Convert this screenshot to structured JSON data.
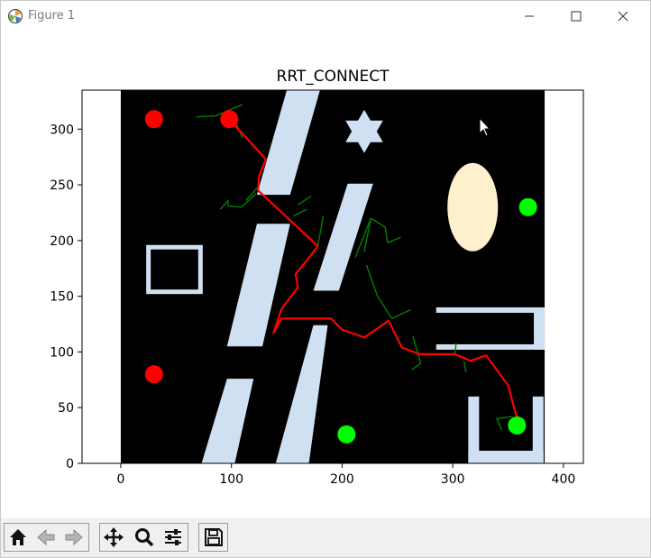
{
  "window": {
    "title": "Figure 1"
  },
  "chart_data": {
    "type": "scatter",
    "title": "RRT_CONNECT",
    "xlabel": "",
    "ylabel": "",
    "xlim": [
      -35,
      418
    ],
    "ylim": [
      0,
      335
    ],
    "xticks": [
      0,
      100,
      200,
      300,
      400
    ],
    "yticks": [
      0,
      50,
      100,
      150,
      200,
      250,
      300
    ],
    "workspace": {
      "x": [
        0,
        383
      ],
      "y": [
        0,
        335
      ],
      "color": "#000000"
    },
    "obstacles": [
      {
        "shape": "polygon",
        "points": [
          [
            150,
            335
          ],
          [
            180,
            335
          ],
          [
            153,
            241
          ],
          [
            123,
            241
          ]
        ],
        "color": "#cfe0f2"
      },
      {
        "shape": "polygon",
        "points": [
          [
            205,
            251
          ],
          [
            228,
            251
          ],
          [
            197,
            155
          ],
          [
            174,
            155
          ]
        ],
        "color": "#cfe0f2"
      },
      {
        "shape": "polygon",
        "points": [
          [
            123,
            215
          ],
          [
            153,
            215
          ],
          [
            128,
            105
          ],
          [
            96,
            105
          ]
        ],
        "color": "#cfe0f2"
      },
      {
        "shape": "polygon",
        "points": [
          [
            187,
            124
          ],
          [
            174,
            124
          ],
          [
            140,
            0
          ],
          [
            170,
            0
          ]
        ],
        "color": "#cfe0f2"
      },
      {
        "shape": "polygon",
        "points": [
          [
            96,
            76
          ],
          [
            120,
            76
          ],
          [
            103,
            0
          ],
          [
            73,
            0
          ]
        ],
        "color": "#cfe0f2"
      },
      {
        "shape": "hexagram",
        "center": [
          220,
          298
        ],
        "radius": 24,
        "color": "#cfe0f2"
      },
      {
        "shape": "square-ring",
        "x": [
          25,
          72
        ],
        "y": [
          194,
          154
        ],
        "thickness": 5,
        "color": "#cfe0f2"
      },
      {
        "shape": "ellipse",
        "center": [
          318,
          230
        ],
        "rx": 28,
        "ry": 49,
        "color": "#fff0cd"
      },
      {
        "shape": "u-ring-horizontal",
        "x": [
          285,
          383
        ],
        "y": [
          140,
          102
        ],
        "thickness": 6,
        "color": "#cfe0f2"
      },
      {
        "shape": "u-ring-vertical",
        "x": [
          314,
          382
        ],
        "y": [
          60,
          0
        ],
        "thickness": 10,
        "color": "#cfe0f2"
      }
    ],
    "red_points": [
      [
        30,
        309
      ],
      [
        98,
        309
      ],
      [
        30,
        80
      ]
    ],
    "green_points": [
      [
        368,
        230
      ],
      [
        204,
        26
      ],
      [
        358,
        34
      ]
    ],
    "path": {
      "color": "#ff0000",
      "points": [
        [
          98,
          309
        ],
        [
          120,
          285
        ],
        [
          131,
          273
        ],
        [
          125,
          258
        ],
        [
          124,
          245
        ],
        [
          150,
          221
        ],
        [
          178,
          195
        ],
        [
          168,
          182
        ],
        [
          158,
          170
        ],
        [
          160,
          158
        ],
        [
          145,
          138
        ],
        [
          141,
          126
        ],
        [
          138,
          117
        ],
        [
          145,
          130
        ],
        [
          190,
          130
        ],
        [
          200,
          120
        ],
        [
          220,
          113
        ],
        [
          242,
          128
        ],
        [
          254,
          104
        ],
        [
          270,
          98
        ],
        [
          302,
          98
        ],
        [
          316,
          92
        ],
        [
          330,
          97
        ],
        [
          350,
          70
        ],
        [
          357,
          44
        ],
        [
          362,
          36
        ]
      ]
    },
    "tree_edges": {
      "color": "#008000",
      "segments": [
        [
          [
            68,
            311
          ],
          [
            86,
            312
          ]
        ],
        [
          [
            86,
            312
          ],
          [
            100,
            318
          ]
        ],
        [
          [
            100,
            318
          ],
          [
            110,
            322
          ]
        ],
        [
          [
            104,
            306
          ],
          [
            110,
            292
          ]
        ],
        [
          [
            113,
            236
          ],
          [
            125,
            249
          ]
        ],
        [
          [
            90,
            228
          ],
          [
            97,
            236
          ]
        ],
        [
          [
            97,
            236
          ],
          [
            97,
            231
          ]
        ],
        [
          [
            97,
            231
          ],
          [
            109,
            230
          ]
        ],
        [
          [
            109,
            230
          ],
          [
            122,
            242
          ]
        ],
        [
          [
            160,
            232
          ],
          [
            172,
            240
          ]
        ],
        [
          [
            156,
            222
          ],
          [
            168,
            228
          ]
        ],
        [
          [
            178,
            195
          ],
          [
            183,
            222
          ]
        ],
        [
          [
            212,
            185
          ],
          [
            226,
            220
          ]
        ],
        [
          [
            220,
            190
          ],
          [
            226,
            220
          ]
        ],
        [
          [
            226,
            220
          ],
          [
            239,
            212
          ]
        ],
        [
          [
            239,
            212
          ],
          [
            241,
            198
          ]
        ],
        [
          [
            241,
            198
          ],
          [
            253,
            203
          ]
        ],
        [
          [
            222,
            178
          ],
          [
            232,
            150
          ]
        ],
        [
          [
            232,
            150
          ],
          [
            245,
            130
          ]
        ],
        [
          [
            245,
            130
          ],
          [
            262,
            138
          ]
        ],
        [
          [
            264,
            114
          ],
          [
            271,
            90
          ]
        ],
        [
          [
            263,
            84
          ],
          [
            271,
            90
          ]
        ],
        [
          [
            310,
            92
          ],
          [
            312,
            82
          ]
        ],
        [
          [
            339,
            40
          ],
          [
            354,
            42
          ]
        ],
        [
          [
            340,
            40
          ],
          [
            344,
            30
          ]
        ],
        [
          [
            302,
            98
          ],
          [
            303,
            108
          ]
        ]
      ]
    }
  },
  "toolbar": {
    "buttons": [
      {
        "name": "home-icon"
      },
      {
        "name": "back-arrow-icon"
      },
      {
        "name": "forward-arrow-icon"
      },
      {
        "name": "pan-icon"
      },
      {
        "name": "zoom-icon"
      },
      {
        "name": "configure-subplots-icon"
      },
      {
        "name": "save-icon"
      }
    ]
  }
}
